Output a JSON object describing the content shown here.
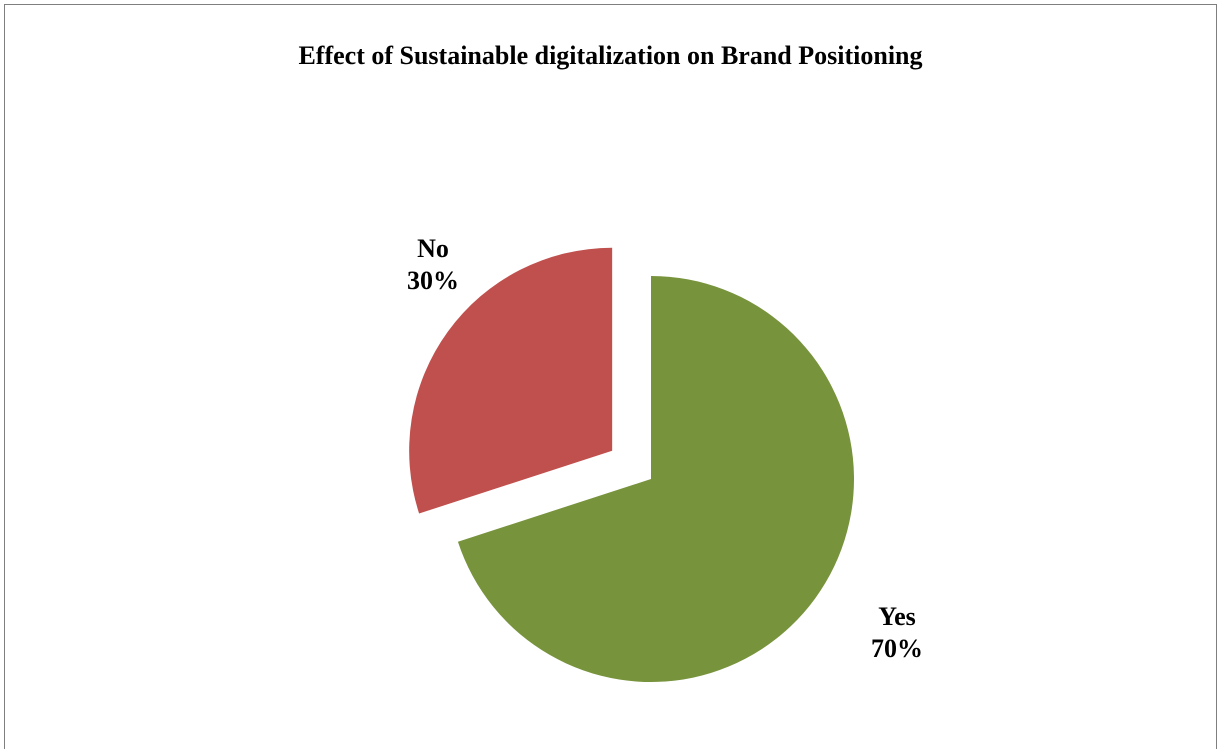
{
  "chart_data": {
    "type": "pie",
    "title": "Effect of Sustainable digitalization on Brand Positioning",
    "slices": [
      {
        "label": "Yes",
        "value": 70,
        "display": "70%",
        "color": "#77933C"
      },
      {
        "label": "No",
        "value": 30,
        "display": "30%",
        "color": "#C0504D"
      }
    ],
    "legend": "none",
    "exploded_slice": "No"
  }
}
